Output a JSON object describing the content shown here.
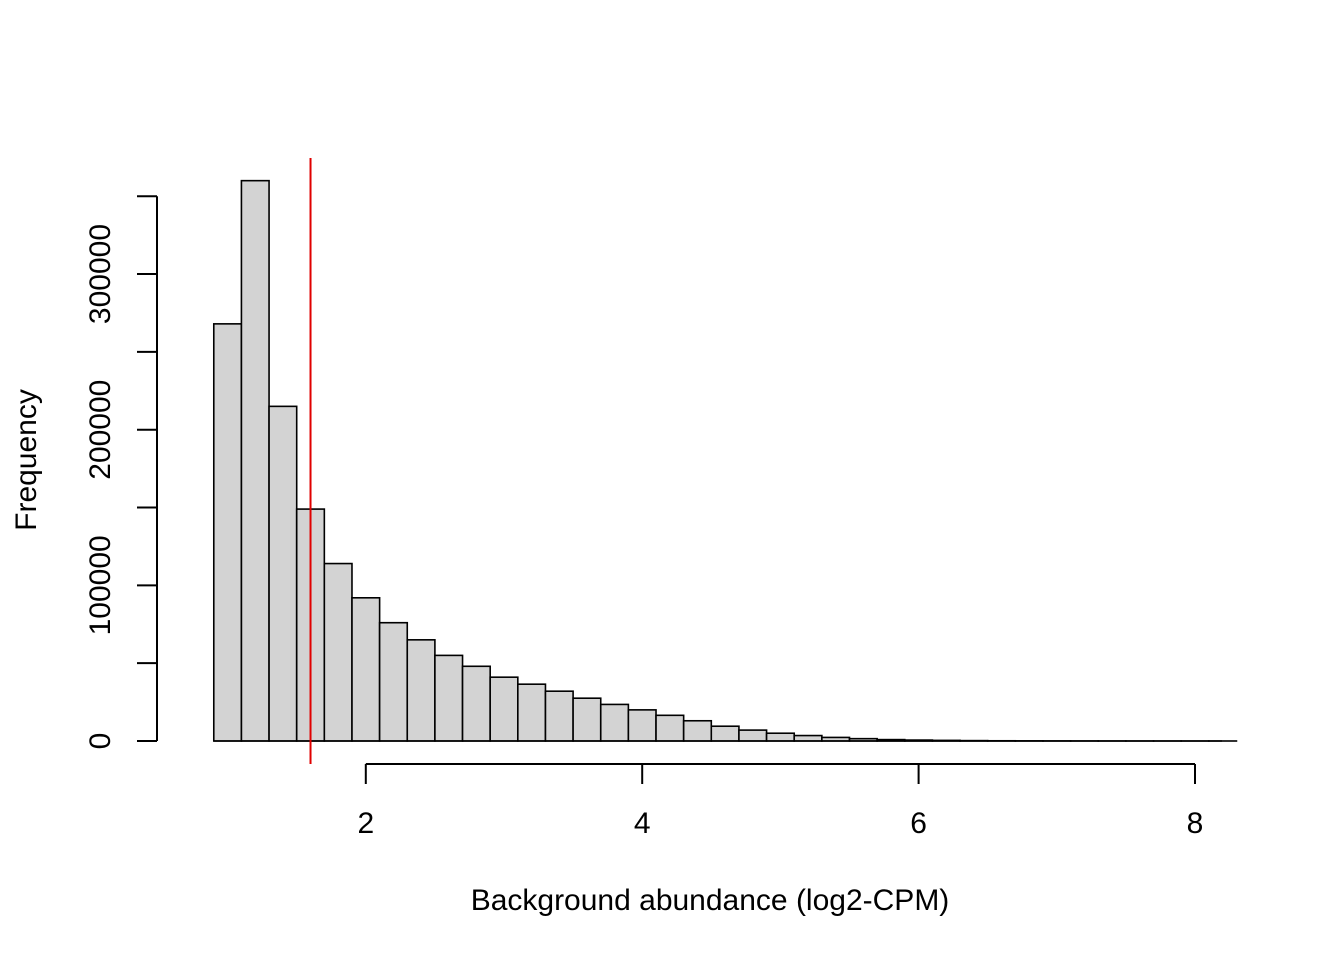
{
  "chart_data": {
    "type": "bar",
    "title": "",
    "xlabel": "Background abundance (log2-CPM)",
    "ylabel": "Frequency",
    "bin_width": 0.2,
    "bin_start": 0.9,
    "values": [
      268000,
      360000,
      215000,
      149000,
      114000,
      92000,
      76000,
      65000,
      55000,
      48000,
      41000,
      36500,
      32000,
      27500,
      23500,
      20000,
      16500,
      13000,
      9500,
      7000,
      5000,
      3500,
      2300,
      1500,
      900,
      600,
      400,
      250,
      150,
      100,
      60,
      40,
      25,
      15,
      10,
      5,
      3
    ],
    "xlim": [
      0.9,
      8.3
    ],
    "ylim": [
      0,
      380000
    ],
    "x_ticks": [
      2,
      4,
      6,
      8
    ],
    "y_ticks": [
      0,
      50000,
      100000,
      150000,
      200000,
      250000,
      300000,
      350000
    ],
    "y_tick_labels": {
      "0": "0",
      "100000": "100000",
      "200000": "200000",
      "300000": "300000"
    },
    "threshold_line": {
      "x": 1.6,
      "color": "#e00000"
    },
    "bar_fill": "#d3d3d3",
    "bar_stroke": "#000000",
    "grid": false,
    "legend": "none"
  }
}
